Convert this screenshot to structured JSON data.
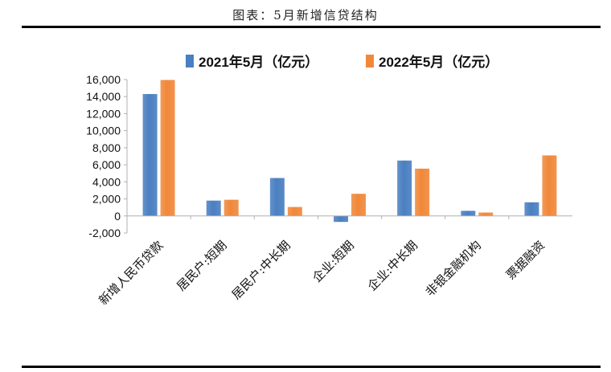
{
  "figure_title": "图表：5月新增信贷结构",
  "chart_data": {
    "type": "bar",
    "categories": [
      "新增人民币贷款",
      "居民户:短期",
      "居民户:中长期",
      "企业:短期",
      "企业:中长期",
      "非银金融机构",
      "票据融资"
    ],
    "series": [
      {
        "name": "2021年5月（亿元）",
        "color": "#4a7fc1",
        "values": [
          14300,
          1800,
          4450,
          -700,
          6500,
          600,
          1600
        ]
      },
      {
        "name": "2022年5月（亿元）",
        "color": "#f0883a",
        "values": [
          15950,
          1900,
          1050,
          2600,
          5550,
          400,
          7100
        ]
      }
    ],
    "ylim": [
      -2000,
      16000
    ],
    "yticks": [
      "-2,000",
      "0",
      "2,000",
      "4,000",
      "6,000",
      "8,000",
      "10,000",
      "12,000",
      "14,000",
      "16,000"
    ],
    "ytick_values": [
      -2000,
      0,
      2000,
      4000,
      6000,
      8000,
      10000,
      12000,
      14000,
      16000
    ],
    "legend_position": "top",
    "grid": false
  }
}
